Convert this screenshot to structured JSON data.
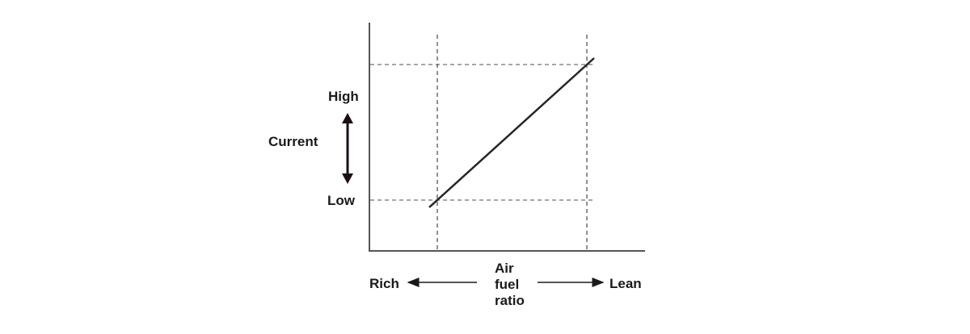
{
  "diagram": {
    "y_axis": {
      "label": "Current",
      "high_label": "High",
      "low_label": "Low"
    },
    "x_axis": {
      "label_lines": [
        "Air",
        "fuel",
        "ratio"
      ],
      "left_label": "Rich",
      "right_label": "Lean"
    },
    "relationship": "linear-increasing",
    "colors": {
      "line": "#2a2424",
      "axis": "#555555",
      "guides": "#888888",
      "text": "#1a1a1a"
    }
  }
}
